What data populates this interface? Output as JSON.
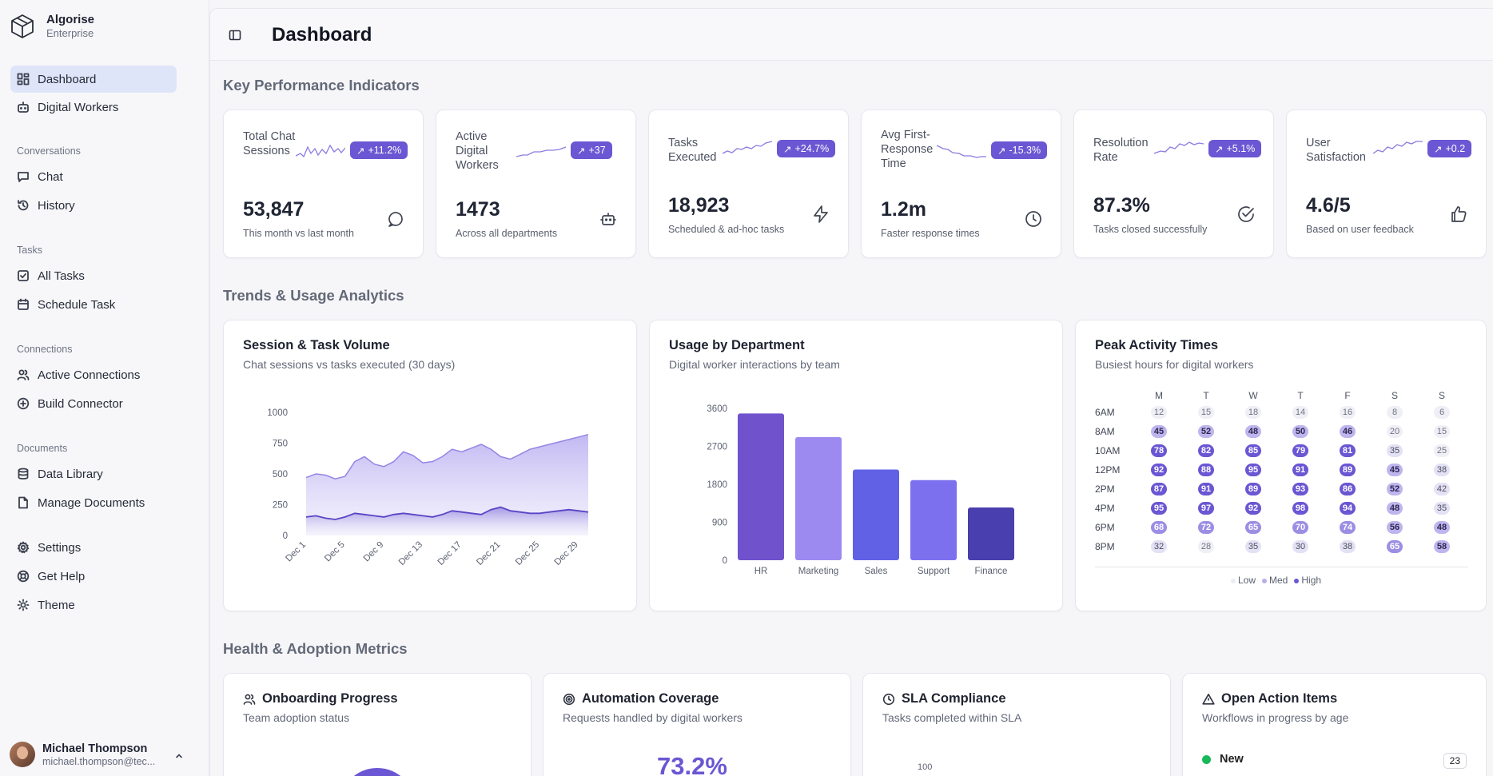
{
  "app": {
    "name": "Algorise",
    "edition": "Enterprise"
  },
  "sidebar": {
    "top_items": [
      {
        "label": "Dashboard",
        "icon": "dashboard-icon",
        "active": true
      },
      {
        "label": "Digital Workers",
        "icon": "bot-icon"
      }
    ],
    "groups": [
      {
        "label": "Conversations",
        "items": [
          {
            "label": "Chat",
            "icon": "chat-icon"
          },
          {
            "label": "History",
            "icon": "history-icon"
          }
        ]
      },
      {
        "label": "Tasks",
        "items": [
          {
            "label": "All Tasks",
            "icon": "checkbox-icon"
          },
          {
            "label": "Schedule Task",
            "icon": "calendar-icon"
          }
        ]
      },
      {
        "label": "Connections",
        "items": [
          {
            "label": "Active Connections",
            "icon": "users-icon"
          },
          {
            "label": "Build Connector",
            "icon": "plus-circle-icon"
          }
        ]
      },
      {
        "label": "Documents",
        "items": [
          {
            "label": "Data Library",
            "icon": "database-icon"
          },
          {
            "label": "Manage Documents",
            "icon": "file-icon"
          }
        ]
      }
    ],
    "bottom_items": [
      {
        "label": "Settings",
        "icon": "gear-icon"
      },
      {
        "label": "Get Help",
        "icon": "lifebuoy-icon"
      },
      {
        "label": "Theme",
        "icon": "sun-icon"
      }
    ],
    "user": {
      "name": "Michael Thompson",
      "email": "michael.thompson@tec..."
    }
  },
  "header": {
    "title": "Dashboard"
  },
  "sections": {
    "kpi": "Key Performance Indicators",
    "trends": "Trends & Usage Analytics",
    "health": "Health & Adoption Metrics"
  },
  "kpis": [
    {
      "label": "Total Chat Sessions",
      "badge": "+11.2%",
      "value": "53,847",
      "sub": "This month vs last month",
      "icon": "chat-bubble-icon"
    },
    {
      "label": "Active Digital Workers",
      "badge": "+37",
      "value": "1473",
      "sub": "Across all departments",
      "icon": "robot-icon"
    },
    {
      "label": "Tasks Executed",
      "badge": "+24.7%",
      "value": "18,923",
      "sub": "Scheduled & ad-hoc tasks",
      "icon": "lightning-icon"
    },
    {
      "label": "Avg First-Response Time",
      "badge": "-15.3%",
      "value": "1.2m",
      "sub": "Faster response times",
      "icon": "clock-icon"
    },
    {
      "label": "Resolution Rate",
      "badge": "+5.1%",
      "value": "87.3%",
      "sub": "Tasks closed successfully",
      "icon": "check-circle-icon"
    },
    {
      "label": "User Satisfaction",
      "badge": "+0.2",
      "value": "4.6/5",
      "sub": "Based on user feedback",
      "icon": "thumbs-up-icon"
    }
  ],
  "session_card": {
    "title": "Session & Task Volume",
    "subtitle": "Chat sessions vs tasks executed (30 days)"
  },
  "dept_card": {
    "title": "Usage by Department",
    "subtitle": "Digital worker interactions by team"
  },
  "peak_card": {
    "title": "Peak Activity Times",
    "subtitle": "Busiest hours for digital workers",
    "legend": [
      "Low",
      "Med",
      "High"
    ]
  },
  "health_cards": {
    "onboarding": {
      "title": "Onboarding Progress",
      "subtitle": "Team adoption status"
    },
    "automation": {
      "title": "Automation Coverage",
      "subtitle": "Requests handled by digital workers",
      "value": "73.2%"
    },
    "sla": {
      "title": "SLA Compliance",
      "subtitle": "Tasks completed within SLA",
      "axis_top": "100"
    },
    "actions": {
      "title": "Open Action Items",
      "subtitle": "Workflows in progress by age",
      "first_item": "New",
      "first_count": "23"
    }
  },
  "colors": {
    "accent": "#6b56d3",
    "active_nav": "#dfe5f9",
    "status_green": "#19b85a"
  },
  "chart_data": [
    {
      "type": "area",
      "title": "Session & Task Volume",
      "x": [
        "Dec 1",
        "Dec 2",
        "Dec 3",
        "Dec 4",
        "Dec 5",
        "Dec 6",
        "Dec 7",
        "Dec 8",
        "Dec 9",
        "Dec 10",
        "Dec 11",
        "Dec 12",
        "Dec 13",
        "Dec 14",
        "Dec 15",
        "Dec 16",
        "Dec 17",
        "Dec 18",
        "Dec 19",
        "Dec 20",
        "Dec 21",
        "Dec 22",
        "Dec 23",
        "Dec 24",
        "Dec 25",
        "Dec 26",
        "Dec 27",
        "Dec 28",
        "Dec 29",
        "Dec 30"
      ],
      "x_tick_labels": [
        "Dec 1",
        "Dec 5",
        "Dec 9",
        "Dec 13",
        "Dec 17",
        "Dec 21",
        "Dec 25",
        "Dec 29"
      ],
      "ylim": [
        0,
        1000
      ],
      "yticks": [
        0,
        250,
        500,
        750,
        1000
      ],
      "series": [
        {
          "values": [
            470,
            500,
            490,
            460,
            480,
            600,
            640,
            580,
            560,
            600,
            680,
            650,
            590,
            600,
            640,
            700,
            680,
            710,
            740,
            700,
            640,
            620,
            660,
            700,
            720,
            740,
            760,
            780,
            800,
            820
          ]
        },
        {
          "values": [
            150,
            160,
            140,
            130,
            150,
            180,
            170,
            160,
            150,
            170,
            180,
            170,
            160,
            150,
            170,
            200,
            190,
            180,
            170,
            210,
            230,
            200,
            190,
            180,
            180,
            190,
            200,
            210,
            200,
            190
          ]
        }
      ]
    },
    {
      "type": "bar",
      "title": "Usage by Department",
      "categories": [
        "HR",
        "Marketing",
        "Sales",
        "Support",
        "Finance"
      ],
      "values": [
        3480,
        2920,
        2150,
        1900,
        1250
      ],
      "ylim": [
        0,
        3600
      ],
      "yticks": [
        0,
        900,
        1800,
        2700,
        3600
      ],
      "colors": [
        "#6f52cc",
        "#9d8af0",
        "#6161e6",
        "#7d70ee",
        "#4a3fae"
      ]
    },
    {
      "type": "heatmap",
      "title": "Peak Activity Times",
      "columns": [
        "M",
        "T",
        "W",
        "T",
        "F",
        "S",
        "S"
      ],
      "rows": [
        "6AM",
        "8AM",
        "10AM",
        "12PM",
        "2PM",
        "4PM",
        "6PM",
        "8PM"
      ],
      "values": [
        [
          12,
          15,
          18,
          14,
          16,
          8,
          6
        ],
        [
          45,
          52,
          48,
          50,
          46,
          20,
          15
        ],
        [
          78,
          82,
          85,
          79,
          81,
          35,
          25
        ],
        [
          92,
          88,
          95,
          91,
          89,
          45,
          38
        ],
        [
          87,
          91,
          89,
          93,
          86,
          52,
          42
        ],
        [
          95,
          97,
          92,
          98,
          94,
          48,
          35
        ],
        [
          68,
          72,
          65,
          70,
          74,
          56,
          48
        ],
        [
          32,
          28,
          35,
          30,
          38,
          65,
          58
        ]
      ]
    }
  ]
}
